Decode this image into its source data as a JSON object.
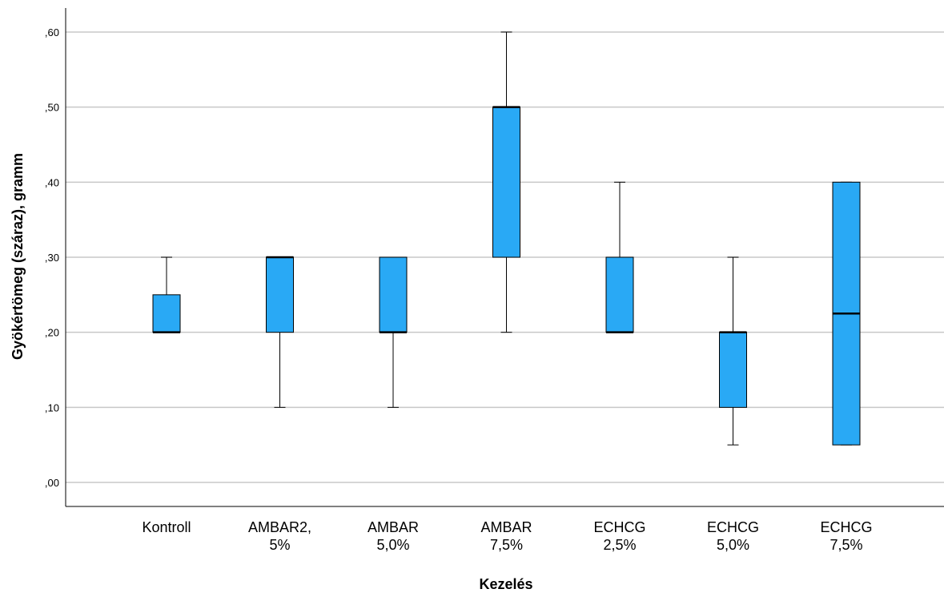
{
  "chart_data": {
    "type": "boxplot",
    "xlabel": "Kezelés",
    "ylabel": "Gyökértömeg (száraz), gramm",
    "ylim": [
      -0.032,
      0.632
    ],
    "grid": "horizontal",
    "y_ticks": [
      {
        "value": 0.0,
        "label": ",00"
      },
      {
        "value": 0.1,
        "label": ",10"
      },
      {
        "value": 0.2,
        "label": ",20"
      },
      {
        "value": 0.3,
        "label": ",30"
      },
      {
        "value": 0.4,
        "label": ",40"
      },
      {
        "value": 0.5,
        "label": ",50"
      },
      {
        "value": 0.6,
        "label": ",60"
      }
    ],
    "categories": [
      {
        "lines": [
          "Kontroll"
        ]
      },
      {
        "lines": [
          "AMBAR2,",
          "5%"
        ]
      },
      {
        "lines": [
          "AMBAR",
          "5,0%"
        ]
      },
      {
        "lines": [
          "AMBAR",
          "7,5%"
        ]
      },
      {
        "lines": [
          "ECHCG",
          "2,5%"
        ]
      },
      {
        "lines": [
          "ECHCG",
          "5,0%"
        ]
      },
      {
        "lines": [
          "ECHCG",
          "7,5%"
        ]
      }
    ],
    "boxes": [
      {
        "whisker_low": 0.2,
        "q1": 0.2,
        "median": 0.2,
        "q3": 0.25,
        "whisker_high": 0.3
      },
      {
        "whisker_low": 0.1,
        "q1": 0.2,
        "median": 0.3,
        "q3": 0.3,
        "whisker_high": 0.3
      },
      {
        "whisker_low": 0.1,
        "q1": 0.2,
        "median": 0.2,
        "q3": 0.3,
        "whisker_high": 0.3
      },
      {
        "whisker_low": 0.2,
        "q1": 0.3,
        "median": 0.5,
        "q3": 0.5,
        "whisker_high": 0.6
      },
      {
        "whisker_low": 0.2,
        "q1": 0.2,
        "median": 0.2,
        "q3": 0.3,
        "whisker_high": 0.4
      },
      {
        "whisker_low": 0.05,
        "q1": 0.1,
        "median": 0.2,
        "q3": 0.2,
        "whisker_high": 0.3
      },
      {
        "whisker_low": 0.05,
        "q1": 0.05,
        "median": 0.225,
        "q3": 0.4,
        "whisker_high": 0.4
      }
    ],
    "colors": {
      "box_fill": "#29a9f5",
      "grid": "#c8c8c8",
      "stroke": "#000000"
    }
  }
}
